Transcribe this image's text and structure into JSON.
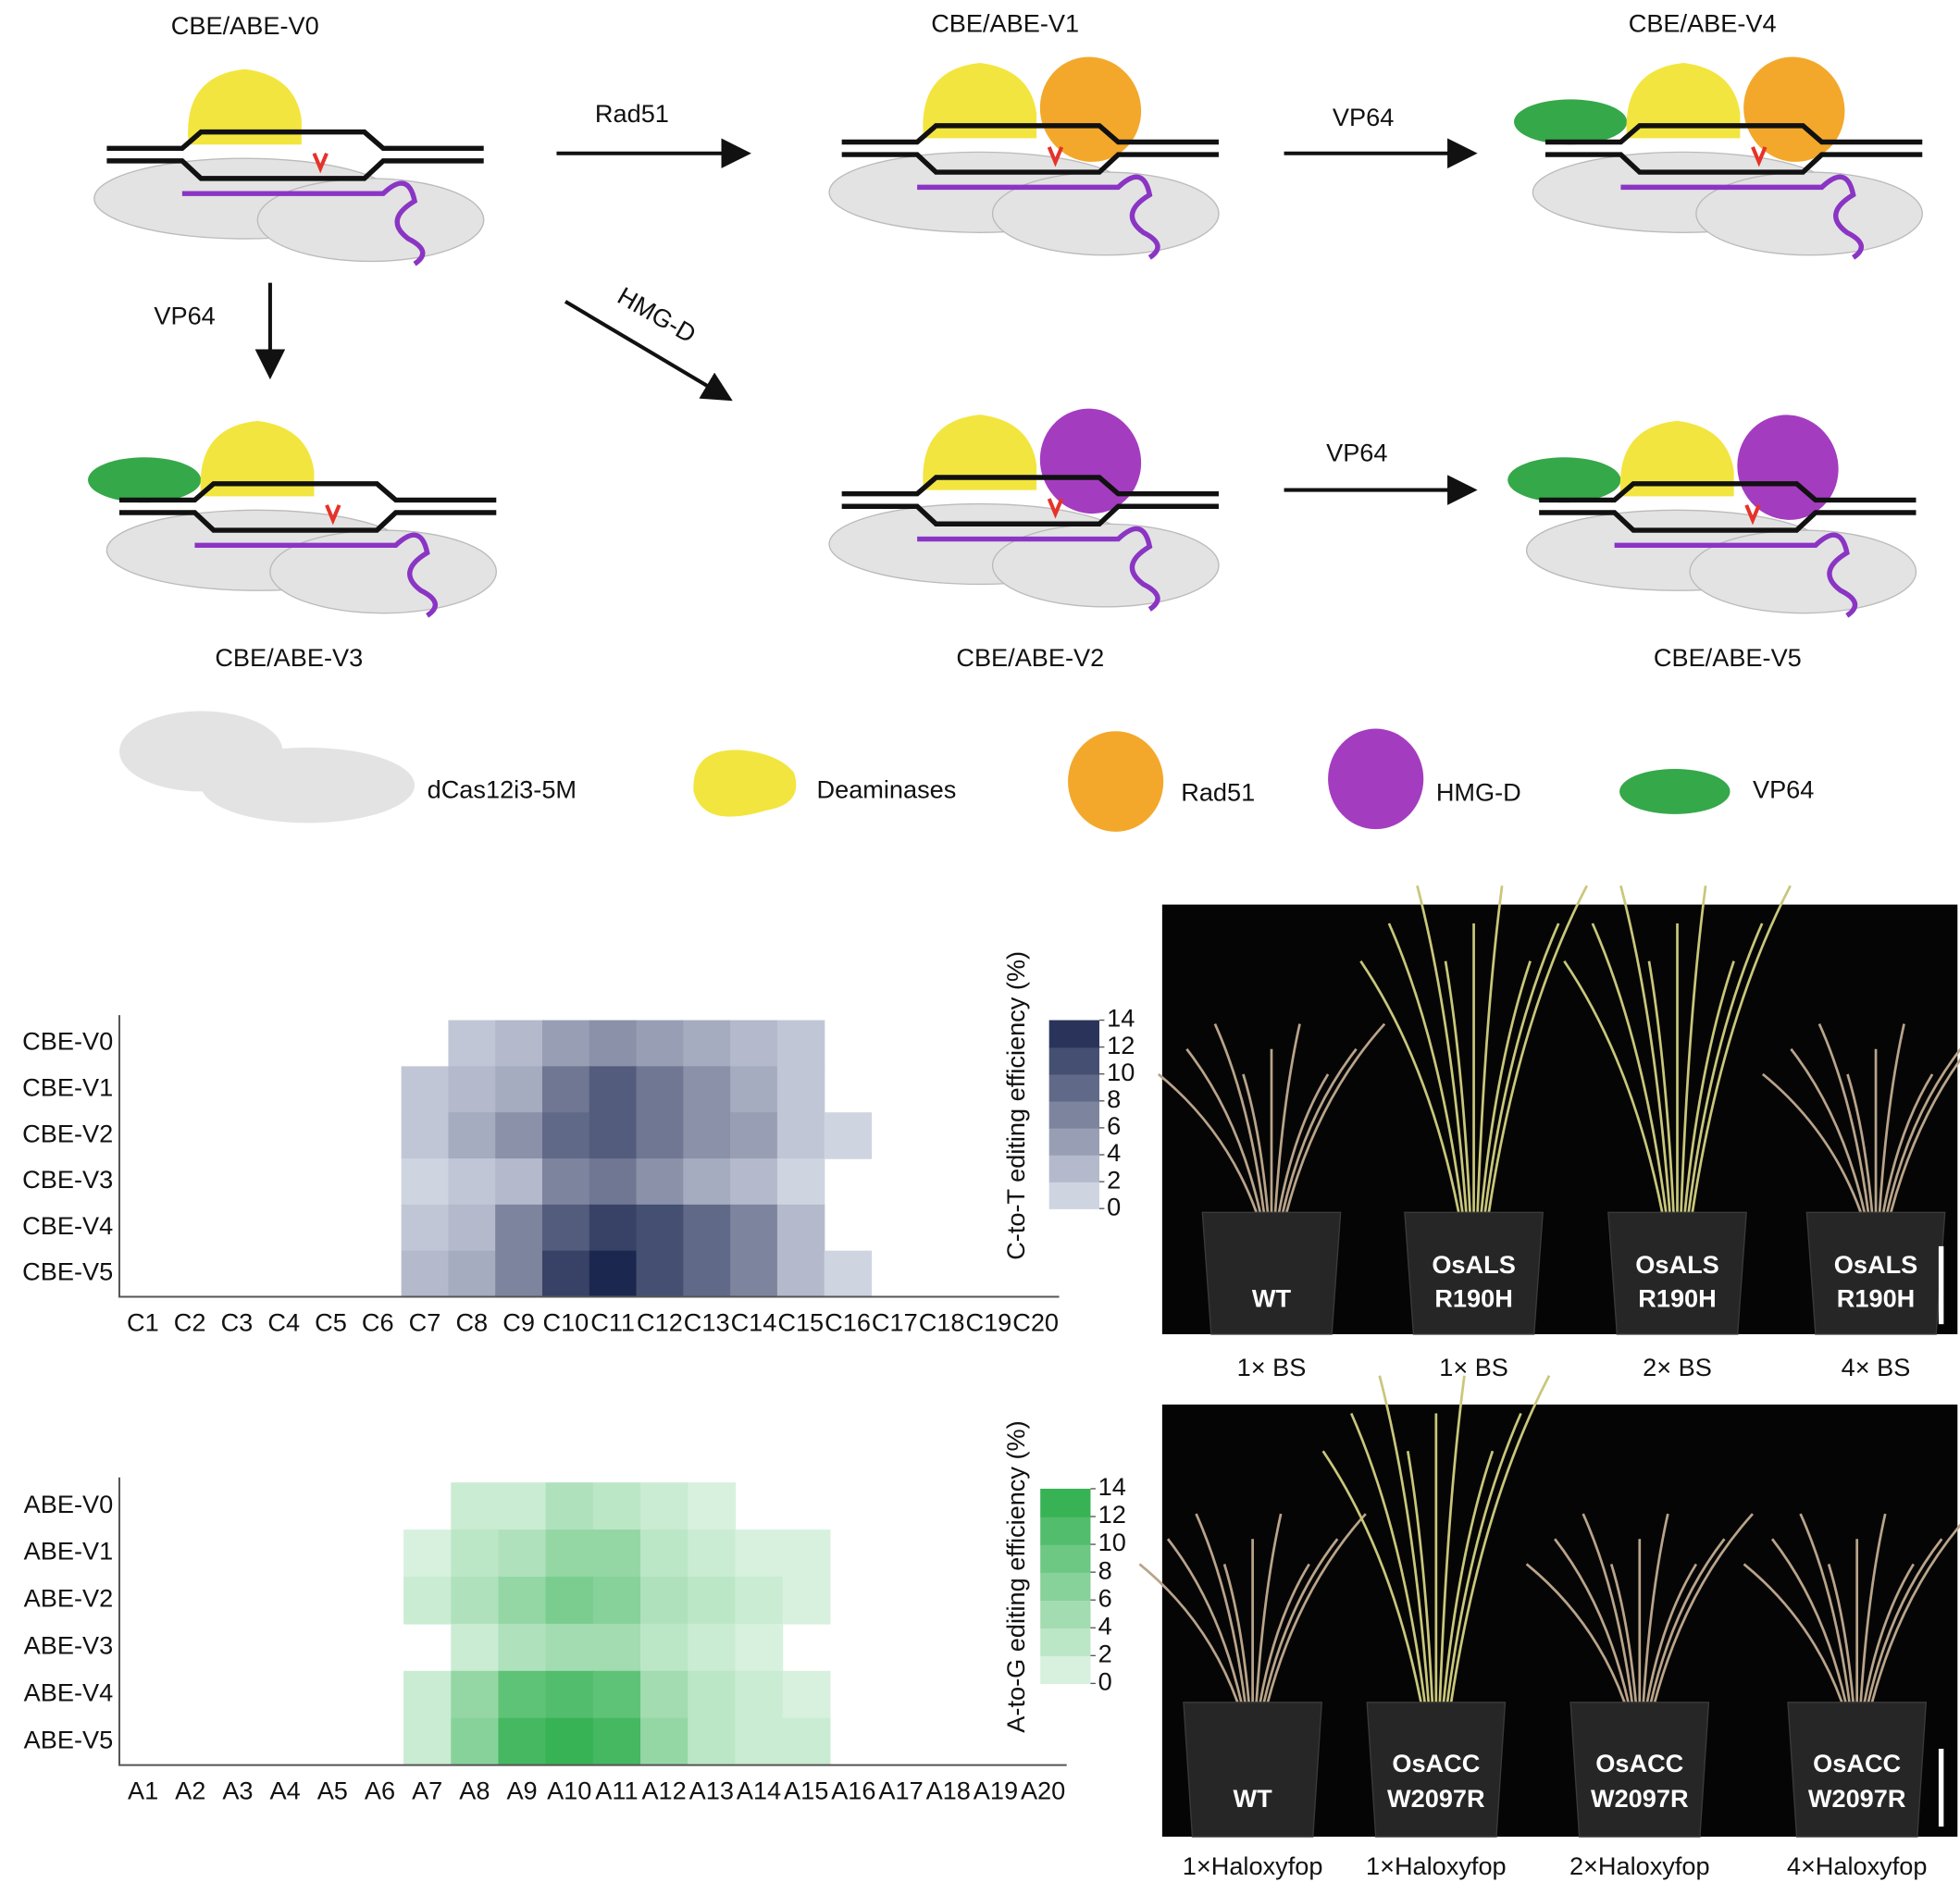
{
  "diagram": {
    "nodes": [
      "CBE/ABE-V0",
      "CBE/ABE-V1",
      "CBE/ABE-V4",
      "CBE/ABE-V3",
      "CBE/ABE-V2",
      "CBE/ABE-V5"
    ],
    "edges": [
      "Rad51",
      "VP64",
      "VP64",
      "HMG-D",
      "VP64"
    ],
    "legend": [
      "dCas12i3-5M",
      "Deaminases",
      "Rad51",
      "HMG-D",
      "VP64"
    ]
  },
  "chart_data": [
    {
      "type": "heatmap",
      "colorbar_label": "C-to-T editing efficiency (%)",
      "color_low": "#dde1ec",
      "color_high": "#1c2750",
      "rows": [
        "CBE-V0",
        "CBE-V1",
        "CBE-V2",
        "CBE-V3",
        "CBE-V4",
        "CBE-V5"
      ],
      "columns": [
        "C1",
        "C2",
        "C3",
        "C4",
        "C5",
        "C6",
        "C7",
        "C8",
        "C9",
        "C10",
        "C11",
        "C12",
        "C13",
        "C14",
        "C15",
        "C16",
        "C17",
        "C18",
        "C19",
        "C20"
      ],
      "values": [
        [
          null,
          null,
          null,
          null,
          null,
          null,
          null,
          2,
          3,
          5,
          6,
          5,
          4,
          3,
          2,
          null,
          null,
          null,
          null,
          null
        ],
        [
          null,
          null,
          null,
          null,
          null,
          null,
          2,
          3,
          4,
          8,
          10,
          8,
          6,
          4,
          2,
          null,
          null,
          null,
          null,
          null
        ],
        [
          null,
          null,
          null,
          null,
          null,
          null,
          2,
          4,
          6,
          9,
          10,
          8,
          6,
          5,
          2,
          1,
          null,
          null,
          null,
          null
        ],
        [
          null,
          null,
          null,
          null,
          null,
          null,
          1,
          2,
          3,
          7,
          8,
          6,
          4,
          3,
          1,
          null,
          null,
          null,
          null,
          null
        ],
        [
          null,
          null,
          null,
          null,
          null,
          null,
          2,
          3,
          7,
          10,
          12,
          11,
          9,
          7,
          3,
          null,
          null,
          null,
          null,
          null
        ],
        [
          null,
          null,
          null,
          null,
          null,
          null,
          3,
          4,
          7,
          12,
          14,
          11,
          9,
          7,
          3,
          1,
          null,
          null,
          null,
          null
        ]
      ],
      "clim": [
        0,
        14
      ],
      "color_ticks": [
        0,
        2,
        4,
        6,
        8,
        10,
        12,
        14
      ]
    },
    {
      "type": "heatmap",
      "colorbar_label": "A-to-G editing efficiency (%)",
      "color_low": "#e4f6e9",
      "color_high": "#2aae4a",
      "rows": [
        "ABE-V0",
        "ABE-V1",
        "ABE-V2",
        "ABE-V3",
        "ABE-V4",
        "ABE-V5"
      ],
      "columns": [
        "A1",
        "A2",
        "A3",
        "A4",
        "A5",
        "A6",
        "A7",
        "A8",
        "A9",
        "A10",
        "A11",
        "A12",
        "A13",
        "A14",
        "A15",
        "A16",
        "A17",
        "A18",
        "A19",
        "A20"
      ],
      "values": [
        [
          null,
          null,
          null,
          null,
          null,
          null,
          null,
          2,
          2,
          4,
          3,
          2,
          1,
          null,
          null,
          null,
          null,
          null,
          null,
          null
        ],
        [
          null,
          null,
          null,
          null,
          null,
          null,
          1,
          3,
          4,
          6,
          6,
          3,
          2,
          1,
          1,
          null,
          null,
          null,
          null,
          null
        ],
        [
          null,
          null,
          null,
          null,
          null,
          null,
          2,
          4,
          6,
          8,
          7,
          4,
          3,
          2,
          1,
          null,
          null,
          null,
          null,
          null
        ],
        [
          null,
          null,
          null,
          null,
          null,
          null,
          null,
          2,
          4,
          5,
          5,
          3,
          2,
          1,
          null,
          null,
          null,
          null,
          null,
          null
        ],
        [
          null,
          null,
          null,
          null,
          null,
          null,
          2,
          6,
          10,
          11,
          10,
          5,
          3,
          2,
          1,
          null,
          null,
          null,
          null,
          null
        ],
        [
          null,
          null,
          null,
          null,
          null,
          null,
          2,
          7,
          12,
          13,
          12,
          6,
          3,
          2,
          2,
          null,
          null,
          null,
          null,
          null
        ]
      ],
      "clim": [
        0,
        14
      ],
      "color_ticks": [
        0,
        2,
        4,
        6,
        8,
        10,
        12,
        14
      ]
    }
  ],
  "photos": [
    {
      "pots": [
        [
          "WT"
        ],
        [
          "OsALS",
          "R190H"
        ],
        [
          "OsALS",
          "R190H"
        ],
        [
          "OsALS",
          "R190H"
        ]
      ],
      "treatments": [
        "1× BS",
        "1× BS",
        "2× BS",
        "4× BS"
      ]
    },
    {
      "pots": [
        [
          "WT"
        ],
        [
          "OsACC",
          "W2097R"
        ],
        [
          "OsACC",
          "W2097R"
        ],
        [
          "OsACC",
          "W2097R"
        ]
      ],
      "treatments": [
        "1×Haloxyfop",
        "1×Haloxyfop",
        "2×Haloxyfop",
        "4×Haloxyfop"
      ]
    }
  ]
}
